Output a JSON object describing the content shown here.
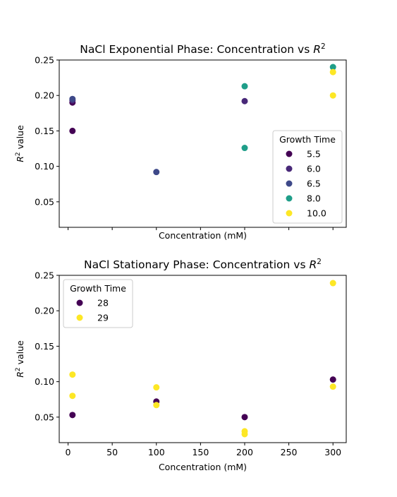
{
  "chart_data": [
    {
      "type": "scatter",
      "title": "NaCl Exponential Phase: Concentration vs ",
      "title_math": "R",
      "title_sup": "2",
      "xlabel": "Concentration (mM)",
      "ylabel_math": "R",
      "ylabel_sup": "2",
      "ylabel_rest": " value",
      "xlim": [
        -10,
        315
      ],
      "ylim": [
        0.014,
        0.25
      ],
      "xticks": [
        0,
        50,
        100,
        150,
        200,
        250,
        300
      ],
      "xtick_labels_visible": false,
      "yticks": [
        0.05,
        0.1,
        0.15,
        0.2,
        0.25
      ],
      "ytick_labels": [
        "0.05",
        "0.10",
        "0.15",
        "0.20",
        "0.25"
      ],
      "legend": {
        "title": "Growth Time",
        "placement": "lower-right"
      },
      "series": [
        {
          "name": "5.5",
          "color": "#440154",
          "points": [
            [
              5,
              0.15
            ],
            [
              5,
              0.19
            ]
          ]
        },
        {
          "name": "6.0",
          "color": "#482878",
          "points": [
            [
              5,
              0.193
            ],
            [
              200,
              0.192
            ]
          ]
        },
        {
          "name": "6.5",
          "color": "#3e4989",
          "points": [
            [
              5,
              0.195
            ],
            [
              100,
              0.092
            ]
          ]
        },
        {
          "name": "8.0",
          "color": "#1f9e89",
          "points": [
            [
              200,
              0.213
            ],
            [
              200,
              0.126
            ],
            [
              300,
              0.24
            ]
          ]
        },
        {
          "name": "10.0",
          "color": "#fde725",
          "points": [
            [
              300,
              0.233
            ],
            [
              300,
              0.2
            ]
          ]
        }
      ]
    },
    {
      "type": "scatter",
      "title": "NaCl Stationary Phase: Concentration vs ",
      "title_math": "R",
      "title_sup": "2",
      "xlabel": "Concentration (mM)",
      "ylabel_math": "R",
      "ylabel_sup": "2",
      "ylabel_rest": " value",
      "xlim": [
        -10,
        315
      ],
      "ylim": [
        0.014,
        0.25
      ],
      "xticks": [
        0,
        50,
        100,
        150,
        200,
        250,
        300
      ],
      "xtick_labels": [
        "0",
        "50",
        "100",
        "150",
        "200",
        "250",
        "300"
      ],
      "xtick_labels_visible": true,
      "yticks": [
        0.05,
        0.1,
        0.15,
        0.2,
        0.25
      ],
      "ytick_labels": [
        "0.05",
        "0.10",
        "0.15",
        "0.20",
        "0.25"
      ],
      "legend": {
        "title": "Growth Time",
        "placement": "upper-left"
      },
      "series": [
        {
          "name": "28",
          "color": "#440154",
          "points": [
            [
              5,
              0.053
            ],
            [
              100,
              0.072
            ],
            [
              200,
              0.05
            ],
            [
              300,
              0.103
            ]
          ]
        },
        {
          "name": "29",
          "color": "#fde725",
          "points": [
            [
              5,
              0.11
            ],
            [
              5,
              0.08
            ],
            [
              100,
              0.092
            ],
            [
              100,
              0.067
            ],
            [
              200,
              0.03
            ],
            [
              200,
              0.026
            ],
            [
              300,
              0.239
            ],
            [
              300,
              0.093
            ]
          ]
        }
      ]
    }
  ]
}
